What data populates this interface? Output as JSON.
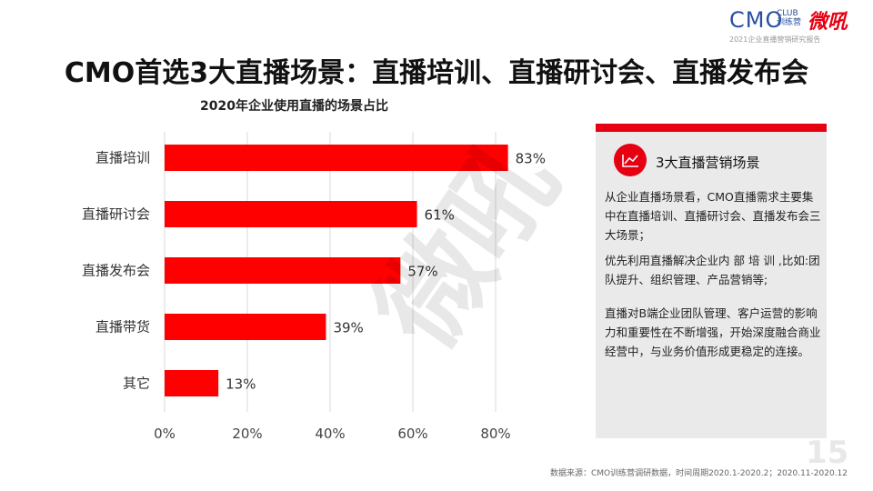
{
  "logo": {
    "main": "CMO",
    "club": "CLUB",
    "club_sub": "训练营",
    "brand": "微吼",
    "slogan": "2021企业直播营销研究报告"
  },
  "title": "CMO首选3大直播场景：直播培训、直播研讨会、直播发布会",
  "chart_data": {
    "type": "bar",
    "orientation": "horizontal",
    "title": "2020年企业使用直播的场景占比",
    "categories": [
      "直播培训",
      "直播研讨会",
      "直播发布会",
      "直播带货",
      "其它"
    ],
    "values": [
      83,
      61,
      57,
      39,
      13
    ],
    "value_labels": [
      "83%",
      "61%",
      "57%",
      "39%",
      "13%"
    ],
    "xlim": [
      0,
      90
    ],
    "xticks": [
      0,
      20,
      40,
      60,
      80
    ],
    "xtick_labels": [
      "0%",
      "20%",
      "40%",
      "60%",
      "80%"
    ],
    "grid": true,
    "bar_color": "#ff0000"
  },
  "watermark": "微吼",
  "panel": {
    "heading": "3大直播营销场景",
    "p1": "从企业直播场景看，CMO直播需求主要集中在直播培训、直播研讨会、直播发布会三大场景；",
    "p2": "优先利用直播解决企业内 部 培 训 ,比如:团队提升、组织管理、产品营销等;",
    "p3": "直播对B端企业团队管理、客户运营的影响力和重要性在不断增强，开始深度融合商业经营中，与业务价值形成更稳定的连接。",
    "accent": "#e60012"
  },
  "page_number": "15",
  "source": "数据来源：CMO训练营调研数据，时间周期2020.1-2020.2；2020.11-2020.12"
}
